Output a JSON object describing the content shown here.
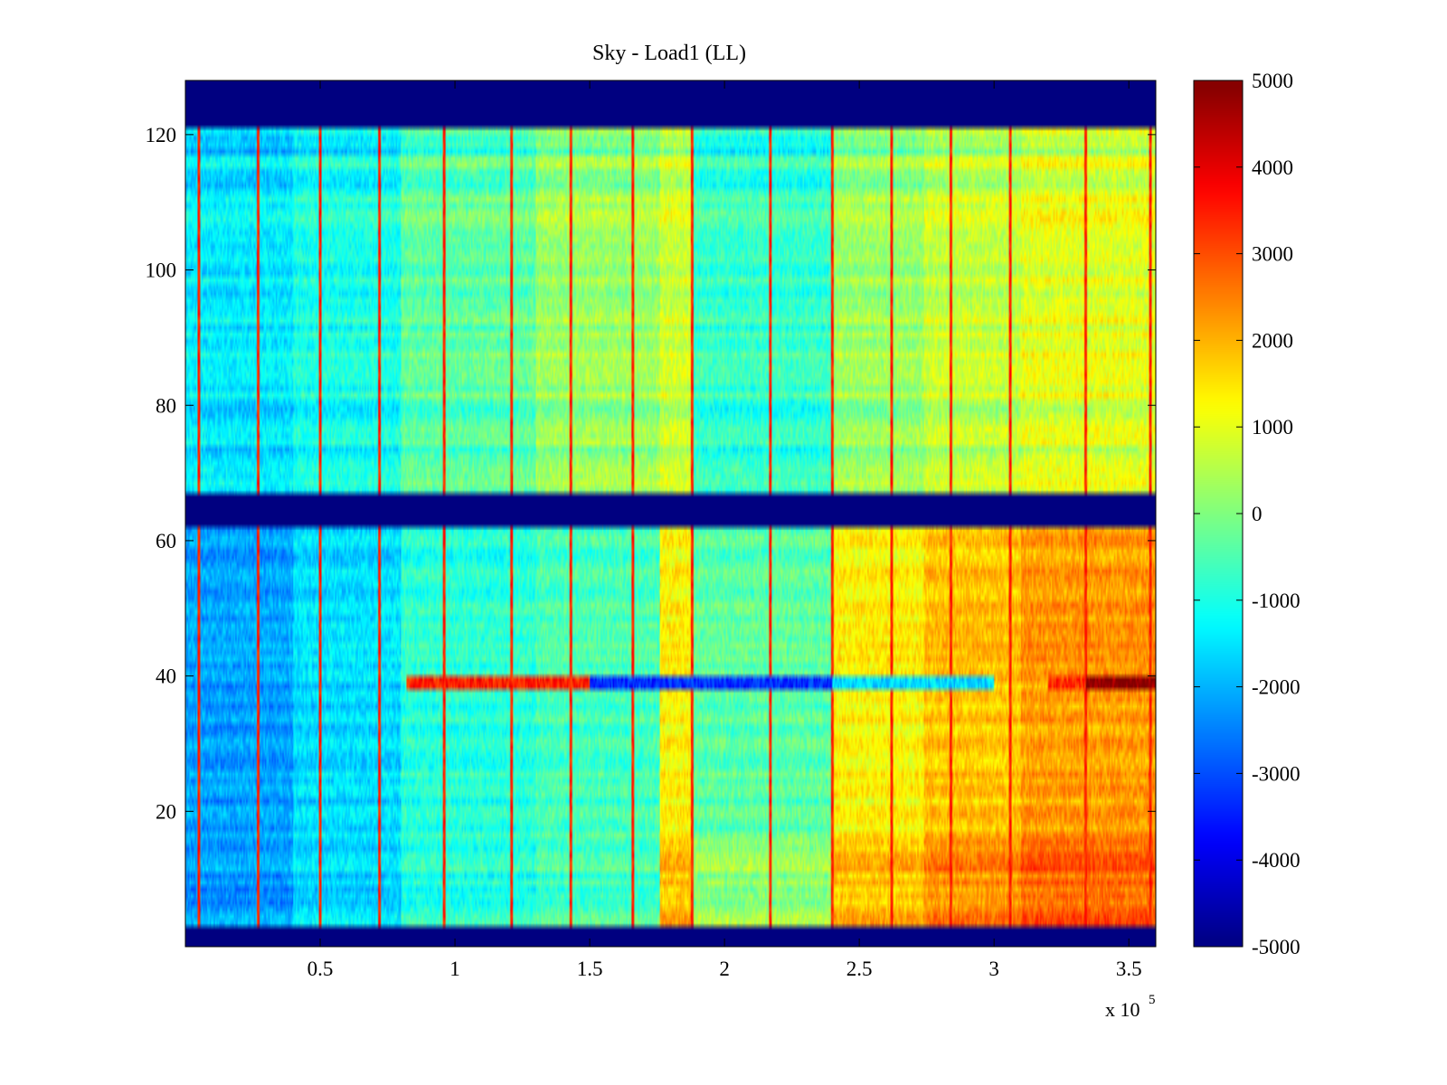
{
  "chart_data": {
    "type": "heatmap",
    "title": "Sky - Load1 (LL)",
    "xlabel": "",
    "ylabel": "",
    "x_exponent_label": "x 10",
    "x_exponent_power": "5",
    "xlim": [
      0,
      360000
    ],
    "ylim": [
      0,
      128
    ],
    "x_ticks": [
      50000,
      100000,
      150000,
      200000,
      250000,
      300000,
      350000
    ],
    "x_tick_labels": [
      "0.5",
      "1",
      "1.5",
      "2",
      "2.5",
      "3",
      "3.5"
    ],
    "y_ticks": [
      20,
      40,
      60,
      80,
      100,
      120
    ],
    "y_tick_labels": [
      "20",
      "40",
      "60",
      "80",
      "100",
      "120"
    ],
    "colorbar": {
      "colormap": "jet",
      "clim": [
        -5000,
        5000
      ],
      "ticks": [
        5000,
        4000,
        3000,
        2000,
        1000,
        0,
        -1000,
        -2000,
        -3000,
        -4000,
        -5000
      ],
      "tick_labels": [
        "5000",
        "4000",
        "3000",
        "2000",
        "1000",
        "0",
        "-1000",
        "-2000",
        "-3000",
        "-4000",
        "-5000"
      ]
    },
    "masked_rows": [
      [
        0,
        3
      ],
      [
        62,
        67
      ],
      [
        121,
        128
      ]
    ],
    "masked_value": -5000,
    "spike_columns_x": [
      5000,
      27000,
      50000,
      72000,
      96000,
      121000,
      143000,
      166000,
      188000,
      217000,
      240000,
      262000,
      284000,
      306000,
      334000,
      358000
    ],
    "spike_value": 3800,
    "time_segments": [
      {
        "x": [
          0,
          40000
        ],
        "upper_band": -1400,
        "lower_band": -2200
      },
      {
        "x": [
          40000,
          80000
        ],
        "upper_band": -1000,
        "lower_band": -1600
      },
      {
        "x": [
          80000,
          130000
        ],
        "upper_band": -300,
        "lower_band": -900
      },
      {
        "x": [
          130000,
          176000
        ],
        "upper_band": 300,
        "lower_band": -600
      },
      {
        "x": [
          176000,
          188000
        ],
        "upper_band": 800,
        "lower_band": 1300
      },
      {
        "x": [
          188000,
          240000
        ],
        "upper_band": -700,
        "lower_band": -400
      },
      {
        "x": [
          240000,
          274000
        ],
        "upper_band": 300,
        "lower_band": 1300
      },
      {
        "x": [
          274000,
          310000
        ],
        "upper_band": 700,
        "lower_band": 1800
      },
      {
        "x": [
          310000,
          360000
        ],
        "upper_band": 1000,
        "lower_band": 2200
      }
    ],
    "anomalous_row": {
      "y": 39,
      "segments": [
        {
          "x": [
            82000,
            150000
          ],
          "value": 3500
        },
        {
          "x": [
            150000,
            240000
          ],
          "value": -3300
        },
        {
          "x": [
            240000,
            300000
          ],
          "value": -1600
        },
        {
          "x": [
            320000,
            334000
          ],
          "value": 3300
        },
        {
          "x": [
            334000,
            360000
          ],
          "value": 4900
        }
      ]
    }
  }
}
